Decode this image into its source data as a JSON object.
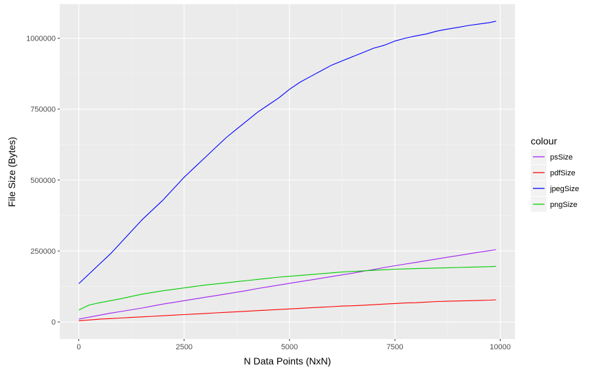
{
  "chart_data": {
    "type": "line",
    "title": "",
    "xlabel": "N Data Points (NxN)",
    "ylabel": "File Size (Bytes)",
    "xlim": [
      -450,
      10350
    ],
    "ylim": [
      -60000,
      1120000
    ],
    "x_ticks": [
      0,
      2500,
      5000,
      7500,
      10000
    ],
    "x_tick_labels": [
      "0",
      "2500",
      "5000",
      "7500",
      "10000"
    ],
    "y_ticks": [
      0,
      250000,
      500000,
      750000,
      1000000
    ],
    "y_tick_labels": [
      "0",
      "250000",
      "500000",
      "750000",
      "1000000"
    ],
    "grid": true,
    "legend_position": "right",
    "legend_title": "colour",
    "x": [
      0,
      250,
      500,
      750,
      1000,
      1250,
      1500,
      1750,
      2000,
      2250,
      2500,
      2750,
      3000,
      3250,
      3500,
      3750,
      4000,
      4250,
      4500,
      4750,
      5000,
      5250,
      5500,
      5750,
      6000,
      6250,
      6500,
      6750,
      7000,
      7250,
      7500,
      7750,
      8000,
      8250,
      8500,
      8750,
      9000,
      9250,
      9500,
      9750,
      9900
    ],
    "series": [
      {
        "name": "psSize",
        "color": "#a020f0",
        "values": [
          10000,
          17000,
          24000,
          31000,
          37000,
          43000,
          49000,
          56000,
          63000,
          69000,
          75000,
          81000,
          87000,
          93000,
          99000,
          105000,
          111000,
          118000,
          124000,
          130000,
          136000,
          142000,
          148000,
          154000,
          160000,
          166000,
          172000,
          179000,
          185000,
          192000,
          198000,
          204000,
          210000,
          216000,
          222000,
          228000,
          234000,
          240000,
          246000,
          251000,
          255000
        ]
      },
      {
        "name": "pdfSize",
        "color": "#ff0000",
        "values": [
          4000,
          7000,
          10000,
          12000,
          14000,
          16000,
          18000,
          20000,
          22000,
          24000,
          26000,
          28000,
          30000,
          32000,
          34000,
          36000,
          38000,
          40000,
          42000,
          44000,
          46000,
          48000,
          50000,
          52000,
          54000,
          56000,
          57000,
          59000,
          61000,
          63000,
          65000,
          67000,
          68000,
          70000,
          72000,
          73000,
          74000,
          75000,
          76000,
          77000,
          78000
        ]
      },
      {
        "name": "jpegSize",
        "color": "#0000ff",
        "values": [
          135000,
          170000,
          205000,
          240000,
          280000,
          320000,
          360000,
          395000,
          430000,
          470000,
          510000,
          545000,
          580000,
          615000,
          650000,
          680000,
          710000,
          740000,
          765000,
          790000,
          820000,
          845000,
          865000,
          885000,
          905000,
          920000,
          935000,
          950000,
          965000,
          975000,
          990000,
          1000000,
          1008000,
          1015000,
          1025000,
          1032000,
          1038000,
          1045000,
          1050000,
          1055000,
          1060000
        ]
      },
      {
        "name": "pngSize",
        "color": "#00cd00",
        "values": [
          42000,
          60000,
          68000,
          75000,
          82000,
          90000,
          98000,
          104000,
          110000,
          115000,
          120000,
          125000,
          130000,
          134000,
          138000,
          142000,
          146000,
          150000,
          154000,
          158000,
          161000,
          164000,
          167000,
          170000,
          173000,
          176000,
          178000,
          180000,
          182000,
          184000,
          186000,
          187000,
          188000,
          189000,
          190000,
          191000,
          192000,
          193000,
          194000,
          195000,
          196000
        ]
      }
    ]
  }
}
